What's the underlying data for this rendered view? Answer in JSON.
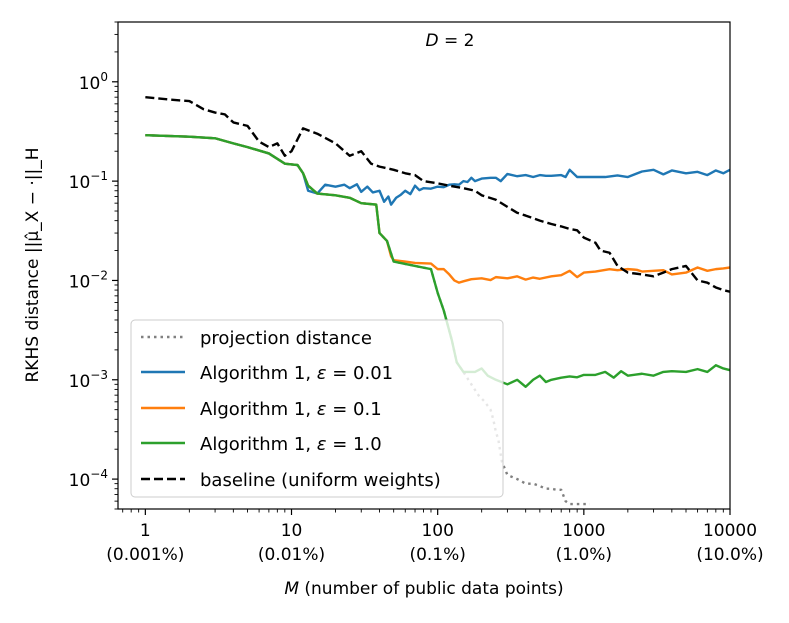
{
  "chart_data": {
    "type": "line",
    "title": "D = 2",
    "title_parts": {
      "var": "D",
      "rest": " = 2"
    },
    "xlabel": "M (number of public data points)",
    "xlabel_parts": {
      "var": "M",
      "rest": " (number of public data points)"
    },
    "ylabel": "RKHS distance ||μ̂_X − ·||_H",
    "xscale": "log",
    "yscale": "log",
    "xlim": [
      0.65,
      10000
    ],
    "ylim": [
      5e-05,
      4
    ],
    "xticks": [
      {
        "value": 1,
        "label": "1",
        "sublabel": "(0.001%)"
      },
      {
        "value": 10,
        "label": "10",
        "sublabel": "(0.01%)"
      },
      {
        "value": 100,
        "label": "100",
        "sublabel": "(0.1%)"
      },
      {
        "value": 1000,
        "label": "1000",
        "sublabel": "(1.0%)"
      },
      {
        "value": 10000,
        "label": "10000",
        "sublabel": "(10.0%)"
      }
    ],
    "yticks": [
      {
        "value": 1,
        "base": "10",
        "exp": "0"
      },
      {
        "value": 0.1,
        "base": "10",
        "exp": "−1"
      },
      {
        "value": 0.01,
        "base": "10",
        "exp": "−2"
      },
      {
        "value": 0.001,
        "base": "10",
        "exp": "−3"
      },
      {
        "value": 0.0001,
        "base": "10",
        "exp": "−4"
      }
    ],
    "legend_position": "lower-left",
    "series": [
      {
        "name": "projection distance",
        "color": "#808080",
        "dash": "dotted",
        "points": [
          [
            1,
            0.29
          ],
          [
            2,
            0.28
          ],
          [
            3,
            0.27
          ],
          [
            4,
            0.24
          ],
          [
            5,
            0.22
          ],
          [
            7,
            0.19
          ],
          [
            9,
            0.15
          ],
          [
            11,
            0.145
          ],
          [
            12,
            0.12
          ],
          [
            13,
            0.09
          ],
          [
            15,
            0.075
          ],
          [
            20,
            0.072
          ],
          [
            25,
            0.068
          ],
          [
            30,
            0.06
          ],
          [
            38,
            0.058
          ],
          [
            40,
            0.03
          ],
          [
            45,
            0.025
          ],
          [
            50,
            0.0155
          ],
          [
            70,
            0.014
          ],
          [
            90,
            0.013
          ],
          [
            100,
            0.0075
          ],
          [
            110,
            0.005
          ],
          [
            125,
            0.0025
          ],
          [
            135,
            0.0015
          ],
          [
            150,
            0.0012
          ],
          [
            170,
            0.0009
          ],
          [
            190,
            0.0007
          ],
          [
            210,
            0.0006
          ],
          [
            230,
            0.0005
          ],
          [
            240,
            0.0004
          ],
          [
            250,
            0.0003
          ],
          [
            260,
            0.00025
          ],
          [
            275,
            0.00015
          ],
          [
            300,
            0.00011
          ],
          [
            350,
            0.0001
          ],
          [
            400,
            9e-05
          ],
          [
            450,
            9e-05
          ],
          [
            500,
            8.5e-05
          ],
          [
            550,
            8e-05
          ],
          [
            600,
            8e-05
          ],
          [
            650,
            7.8e-05
          ],
          [
            700,
            7.8e-05
          ],
          [
            750,
            6e-05
          ],
          [
            800,
            5.6e-05
          ],
          [
            900,
            5.6e-05
          ],
          [
            1000,
            5.6e-05
          ],
          [
            1100,
            5.6e-05
          ]
        ]
      },
      {
        "name": "Algorithm 1, ε = 0.01",
        "label_parts": {
          "text": "Algorithm 1, ",
          "var": "ε",
          "rest": " = 0.01"
        },
        "color": "#1f77b4",
        "dash": "solid",
        "points": [
          [
            1,
            0.29
          ],
          [
            2,
            0.28
          ],
          [
            3,
            0.27
          ],
          [
            4,
            0.24
          ],
          [
            5,
            0.22
          ],
          [
            7,
            0.19
          ],
          [
            9,
            0.15
          ],
          [
            11,
            0.145
          ],
          [
            12,
            0.12
          ],
          [
            13,
            0.08
          ],
          [
            15,
            0.075
          ],
          [
            17,
            0.092
          ],
          [
            20,
            0.088
          ],
          [
            23,
            0.092
          ],
          [
            25,
            0.085
          ],
          [
            28,
            0.093
          ],
          [
            30,
            0.078
          ],
          [
            33,
            0.088
          ],
          [
            36,
            0.077
          ],
          [
            40,
            0.08
          ],
          [
            43,
            0.062
          ],
          [
            46,
            0.07
          ],
          [
            48,
            0.058
          ],
          [
            52,
            0.068
          ],
          [
            56,
            0.073
          ],
          [
            60,
            0.08
          ],
          [
            65,
            0.074
          ],
          [
            70,
            0.09
          ],
          [
            75,
            0.081
          ],
          [
            80,
            0.085
          ],
          [
            90,
            0.084
          ],
          [
            100,
            0.088
          ],
          [
            110,
            0.087
          ],
          [
            120,
            0.092
          ],
          [
            130,
            0.093
          ],
          [
            140,
            0.092
          ],
          [
            150,
            0.1
          ],
          [
            160,
            0.098
          ],
          [
            170,
            0.108
          ],
          [
            180,
            0.1
          ],
          [
            200,
            0.106
          ],
          [
            230,
            0.108
          ],
          [
            250,
            0.108
          ],
          [
            270,
            0.1
          ],
          [
            300,
            0.118
          ],
          [
            350,
            0.112
          ],
          [
            400,
            0.115
          ],
          [
            450,
            0.11
          ],
          [
            500,
            0.115
          ],
          [
            550,
            0.113
          ],
          [
            600,
            0.113
          ],
          [
            700,
            0.115
          ],
          [
            750,
            0.11
          ],
          [
            800,
            0.13
          ],
          [
            900,
            0.11
          ],
          [
            1000,
            0.11
          ],
          [
            1200,
            0.11
          ],
          [
            1400,
            0.11
          ],
          [
            1700,
            0.114
          ],
          [
            2000,
            0.11
          ],
          [
            2500,
            0.125
          ],
          [
            3000,
            0.13
          ],
          [
            3500,
            0.117
          ],
          [
            4000,
            0.128
          ],
          [
            5000,
            0.12
          ],
          [
            6000,
            0.124
          ],
          [
            7000,
            0.115
          ],
          [
            8000,
            0.128
          ],
          [
            9000,
            0.12
          ],
          [
            10000,
            0.13
          ]
        ]
      },
      {
        "name": "Algorithm 1, ε = 0.1",
        "label_parts": {
          "text": "Algorithm 1, ",
          "var": "ε",
          "rest": " = 0.1"
        },
        "color": "#ff7f0e",
        "dash": "solid",
        "points": [
          [
            1,
            0.29
          ],
          [
            2,
            0.28
          ],
          [
            3,
            0.27
          ],
          [
            4,
            0.24
          ],
          [
            5,
            0.22
          ],
          [
            7,
            0.19
          ],
          [
            9,
            0.15
          ],
          [
            11,
            0.145
          ],
          [
            12,
            0.12
          ],
          [
            13,
            0.09
          ],
          [
            15,
            0.075
          ],
          [
            20,
            0.072
          ],
          [
            25,
            0.068
          ],
          [
            30,
            0.06
          ],
          [
            38,
            0.058
          ],
          [
            40,
            0.03
          ],
          [
            45,
            0.025
          ],
          [
            48,
            0.0175
          ],
          [
            50,
            0.016
          ],
          [
            60,
            0.0155
          ],
          [
            70,
            0.015
          ],
          [
            90,
            0.0148
          ],
          [
            100,
            0.013
          ],
          [
            110,
            0.013
          ],
          [
            120,
            0.0115
          ],
          [
            130,
            0.01
          ],
          [
            140,
            0.0095
          ],
          [
            150,
            0.0098
          ],
          [
            170,
            0.0103
          ],
          [
            200,
            0.0105
          ],
          [
            230,
            0.0101
          ],
          [
            250,
            0.0108
          ],
          [
            300,
            0.0105
          ],
          [
            350,
            0.011
          ],
          [
            400,
            0.0102
          ],
          [
            450,
            0.0107
          ],
          [
            500,
            0.0104
          ],
          [
            600,
            0.011
          ],
          [
            700,
            0.0113
          ],
          [
            800,
            0.0125
          ],
          [
            900,
            0.0108
          ],
          [
            1000,
            0.012
          ],
          [
            1200,
            0.0123
          ],
          [
            1500,
            0.013
          ],
          [
            1700,
            0.0127
          ],
          [
            2000,
            0.013
          ],
          [
            2300,
            0.0128
          ],
          [
            2500,
            0.0123
          ],
          [
            3000,
            0.0125
          ],
          [
            3500,
            0.0127
          ],
          [
            4000,
            0.0115
          ],
          [
            5000,
            0.012
          ],
          [
            6000,
            0.0135
          ],
          [
            7000,
            0.0125
          ],
          [
            8000,
            0.013
          ],
          [
            9000,
            0.0132
          ],
          [
            10000,
            0.0135
          ]
        ]
      },
      {
        "name": "Algorithm 1, ε = 1.0",
        "label_parts": {
          "text": "Algorithm 1, ",
          "var": "ε",
          "rest": " = 1.0"
        },
        "color": "#2ca02c",
        "dash": "solid",
        "points": [
          [
            1,
            0.29
          ],
          [
            2,
            0.28
          ],
          [
            3,
            0.27
          ],
          [
            4,
            0.24
          ],
          [
            5,
            0.22
          ],
          [
            7,
            0.19
          ],
          [
            9,
            0.15
          ],
          [
            11,
            0.145
          ],
          [
            12,
            0.12
          ],
          [
            13,
            0.09
          ],
          [
            15,
            0.075
          ],
          [
            20,
            0.072
          ],
          [
            25,
            0.068
          ],
          [
            30,
            0.06
          ],
          [
            38,
            0.058
          ],
          [
            40,
            0.03
          ],
          [
            45,
            0.025
          ],
          [
            50,
            0.0155
          ],
          [
            70,
            0.014
          ],
          [
            90,
            0.013
          ],
          [
            100,
            0.0075
          ],
          [
            110,
            0.005
          ],
          [
            125,
            0.0025
          ],
          [
            135,
            0.0015
          ],
          [
            150,
            0.0012
          ],
          [
            180,
            0.0012
          ],
          [
            200,
            0.0013
          ],
          [
            220,
            0.0011
          ],
          [
            250,
            0.001
          ],
          [
            300,
            0.0009
          ],
          [
            350,
            0.001
          ],
          [
            400,
            0.00085
          ],
          [
            450,
            0.001
          ],
          [
            500,
            0.0011
          ],
          [
            550,
            0.00095
          ],
          [
            600,
            0.001
          ],
          [
            700,
            0.00105
          ],
          [
            800,
            0.00108
          ],
          [
            900,
            0.00106
          ],
          [
            1000,
            0.00112
          ],
          [
            1200,
            0.00112
          ],
          [
            1400,
            0.0012
          ],
          [
            1600,
            0.00105
          ],
          [
            1800,
            0.00122
          ],
          [
            2000,
            0.0011
          ],
          [
            2500,
            0.00115
          ],
          [
            3000,
            0.0011
          ],
          [
            3500,
            0.0012
          ],
          [
            4000,
            0.00122
          ],
          [
            5000,
            0.0012
          ],
          [
            6000,
            0.00128
          ],
          [
            7000,
            0.0012
          ],
          [
            8000,
            0.0014
          ],
          [
            9000,
            0.0013
          ],
          [
            10000,
            0.00125
          ]
        ]
      },
      {
        "name": "baseline (uniform weights)",
        "color": "#000000",
        "dash": "dashed",
        "points": [
          [
            1,
            0.7
          ],
          [
            1.5,
            0.66
          ],
          [
            2,
            0.64
          ],
          [
            2.5,
            0.53
          ],
          [
            3,
            0.49
          ],
          [
            3.5,
            0.47
          ],
          [
            4,
            0.39
          ],
          [
            5,
            0.36
          ],
          [
            6,
            0.25
          ],
          [
            7,
            0.22
          ],
          [
            8,
            0.24
          ],
          [
            9,
            0.18
          ],
          [
            10,
            0.2
          ],
          [
            12,
            0.34
          ],
          [
            15,
            0.3
          ],
          [
            20,
            0.24
          ],
          [
            25,
            0.18
          ],
          [
            30,
            0.2
          ],
          [
            35,
            0.15
          ],
          [
            40,
            0.14
          ],
          [
            50,
            0.13
          ],
          [
            60,
            0.12
          ],
          [
            70,
            0.115
          ],
          [
            80,
            0.1
          ],
          [
            100,
            0.095
          ],
          [
            120,
            0.09
          ],
          [
            150,
            0.085
          ],
          [
            180,
            0.08
          ],
          [
            200,
            0.072
          ],
          [
            250,
            0.065
          ],
          [
            300,
            0.055
          ],
          [
            350,
            0.048
          ],
          [
            400,
            0.045
          ],
          [
            500,
            0.04
          ],
          [
            600,
            0.037
          ],
          [
            700,
            0.035
          ],
          [
            800,
            0.033
          ],
          [
            900,
            0.032
          ],
          [
            1000,
            0.027
          ],
          [
            1200,
            0.024
          ],
          [
            1300,
            0.02
          ],
          [
            1500,
            0.019
          ],
          [
            1700,
            0.014
          ],
          [
            2000,
            0.012
          ],
          [
            2500,
            0.0115
          ],
          [
            3000,
            0.011
          ],
          [
            3500,
            0.012
          ],
          [
            4000,
            0.013
          ],
          [
            5000,
            0.014
          ],
          [
            6000,
            0.01
          ],
          [
            7000,
            0.0095
          ],
          [
            8000,
            0.0085
          ],
          [
            9000,
            0.008
          ],
          [
            10000,
            0.0077
          ]
        ]
      }
    ]
  }
}
